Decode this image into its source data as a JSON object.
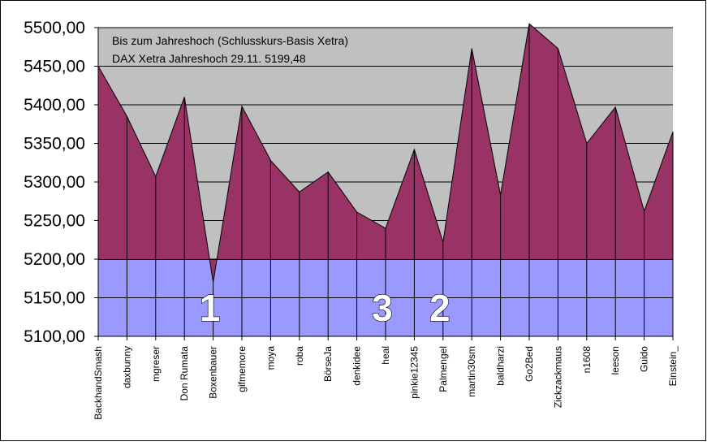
{
  "chart_data": {
    "type": "area",
    "annotation_lines": [
      "Bis zum Jahreshoch (Schlusskurs-Basis Xetra)",
      "DAX Xetra Jahreshoch 29.11.  5199,48"
    ],
    "categories": [
      "BackhandSmash",
      "daxbunny",
      "mgreser",
      "Don Rumata",
      "Boxenbauer",
      "gifmemore",
      "moya",
      "roba",
      "BörseJa",
      "denkidee",
      "heal",
      "pinkie12345",
      "Palmengel",
      "martin30sm",
      "baldharzi",
      "Go2Bed",
      "Zickzackmaus",
      "n1608",
      "leeson",
      "Guido",
      "Einstein_"
    ],
    "values": [
      5450,
      5385,
      5307,
      5410,
      5170,
      5398,
      5328,
      5287,
      5313,
      5261,
      5240,
      5342,
      5222,
      5473,
      5283,
      5505,
      5473,
      5350,
      5397,
      5262,
      5365
    ],
    "reference_value": 5199.48,
    "ylim": [
      5100,
      5500
    ],
    "yticks": [
      5500,
      5450,
      5400,
      5350,
      5300,
      5250,
      5200,
      5150,
      5100
    ],
    "ytick_labels": [
      "5500,00",
      "5450,00",
      "5400,00",
      "5350,00",
      "5300,00",
      "5250,00",
      "5200,00",
      "5150,00",
      "5100,00"
    ],
    "grid": true,
    "markers": [
      {
        "label": "1",
        "category": "Boxenbauer"
      },
      {
        "label": "3",
        "category": "heal"
      },
      {
        "label": "2",
        "category": "Palmengel"
      }
    ],
    "colors": {
      "area_fill": "#993366",
      "upper_band": "#c0c0c0",
      "lower_band": "#9999ff",
      "gridline": "#000000",
      "frame": "#000000",
      "marker_text": "#ffffff"
    }
  }
}
